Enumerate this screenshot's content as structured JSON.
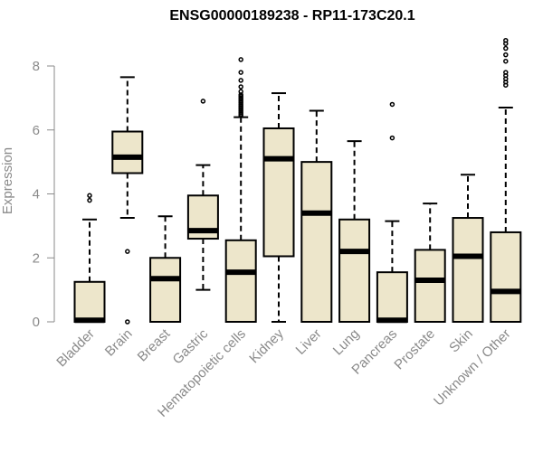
{
  "chart_data": {
    "type": "boxplot",
    "title": "ENSG00000189238 - RP11-173C20.1",
    "ylabel": "Expression",
    "xlabel": "",
    "ylim": [
      0,
      8.8
    ],
    "yticks": [
      0,
      2,
      4,
      6,
      8
    ],
    "grid": false,
    "box_fill": "#ede6cb",
    "stroke": "#000000",
    "axis_color": "#8a8a8a",
    "categories": [
      "Bladder",
      "Brain",
      "Breast",
      "Gastric",
      "Hematopoietic cells",
      "Kidney",
      "Liver",
      "Lung",
      "Pancreas",
      "Prostate",
      "Skin",
      "Unknown / Other"
    ],
    "boxes": [
      {
        "name": "Bladder",
        "whisker_low": 0,
        "q1": 0,
        "median": 0.05,
        "q3": 1.25,
        "whisker_high": 3.2,
        "outliers": [
          3.8,
          3.95
        ]
      },
      {
        "name": "Brain",
        "whisker_low": 3.25,
        "q1": 4.65,
        "median": 5.15,
        "q3": 5.95,
        "whisker_high": 7.65,
        "outliers": [
          2.2,
          0.0
        ]
      },
      {
        "name": "Breast",
        "whisker_low": 0,
        "q1": 0,
        "median": 1.35,
        "q3": 2.0,
        "whisker_high": 3.3,
        "outliers": []
      },
      {
        "name": "Gastric",
        "whisker_low": 1.0,
        "q1": 2.6,
        "median": 2.85,
        "q3": 3.95,
        "whisker_high": 4.9,
        "outliers": [
          6.9
        ]
      },
      {
        "name": "Hematopoietic cells",
        "whisker_low": 0,
        "q1": 0,
        "median": 1.55,
        "q3": 2.55,
        "whisker_high": 6.4,
        "outliers": [
          6.45,
          6.5,
          6.55,
          6.6,
          6.65,
          6.7,
          6.75,
          6.8,
          6.85,
          6.9,
          6.95,
          7.0,
          7.05,
          7.1,
          7.2,
          7.35,
          7.55,
          7.8,
          8.2
        ]
      },
      {
        "name": "Kidney",
        "whisker_low": 0,
        "q1": 2.05,
        "median": 5.1,
        "q3": 6.05,
        "whisker_high": 7.15,
        "outliers": []
      },
      {
        "name": "Liver",
        "whisker_low": 0,
        "q1": 0,
        "median": 3.4,
        "q3": 5.0,
        "whisker_high": 6.6,
        "outliers": []
      },
      {
        "name": "Lung",
        "whisker_low": 0,
        "q1": 0,
        "median": 2.2,
        "q3": 3.2,
        "whisker_high": 5.65,
        "outliers": []
      },
      {
        "name": "Pancreas",
        "whisker_low": 0,
        "q1": 0,
        "median": 0.05,
        "q3": 1.55,
        "whisker_high": 3.15,
        "outliers": [
          5.75,
          6.8
        ]
      },
      {
        "name": "Prostate",
        "whisker_low": 0,
        "q1": 0,
        "median": 1.3,
        "q3": 2.25,
        "whisker_high": 3.7,
        "outliers": []
      },
      {
        "name": "Skin",
        "whisker_low": 0,
        "q1": 0,
        "median": 2.05,
        "q3": 3.25,
        "whisker_high": 4.6,
        "outliers": []
      },
      {
        "name": "Unknown / Other",
        "whisker_low": 0,
        "q1": 0,
        "median": 0.95,
        "q3": 2.8,
        "whisker_high": 6.7,
        "outliers": [
          7.4,
          7.5,
          7.6,
          7.7,
          7.8,
          8.15,
          8.35,
          8.55,
          8.7,
          8.8
        ]
      }
    ]
  }
}
